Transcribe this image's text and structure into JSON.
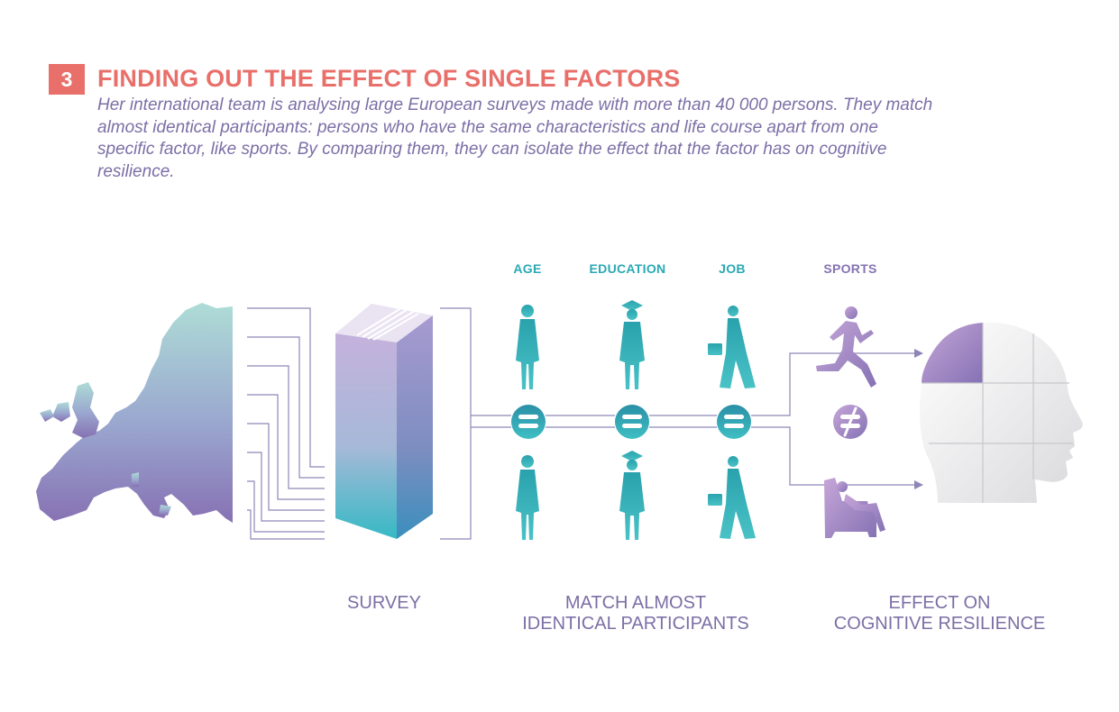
{
  "header": {
    "step_number": "3",
    "title": "FINDING OUT THE EFFECT OF SINGLE FACTORS",
    "intro": "Her international team is analysing large European surveys made with more than 40 000 persons. They match almost identical participants: persons who have the same characteristics and life course apart from one specific factor, like sports. By comparing them, they can isolate the effect that the factor has on cognitive resilience."
  },
  "factors": {
    "age": "AGE",
    "education": "EDUCATION",
    "job": "JOB",
    "sports": "SPORTS"
  },
  "captions": {
    "survey": "SURVEY",
    "match_line1": "MATCH ALMOST",
    "match_line2": "IDENTICAL PARTICIPANTS",
    "effect_line1": "EFFECT ON",
    "effect_line2": "COGNITIVE RESILIENCE"
  },
  "icons": {
    "map": "europe-map-icon",
    "survey": "survey-stack-icon",
    "equal": "equal-sign-icon",
    "not_equal": "not-equal-sign-icon",
    "runner": "runner-icon",
    "armchair": "armchair-sitter-icon",
    "head": "puzzle-head-icon"
  },
  "colors": {
    "accent_red": "#e96f6a",
    "text_violet": "#7c6fa6",
    "teal": "#2aa9b4",
    "violet": "#8673b2",
    "line": "#7c6fa6"
  }
}
